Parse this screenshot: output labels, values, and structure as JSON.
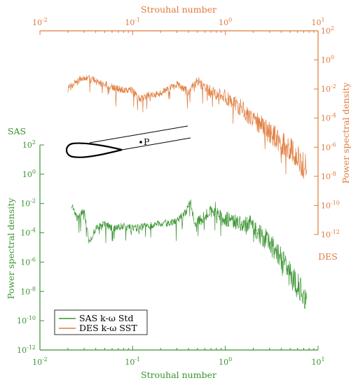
{
  "colors": {
    "sas": "#3a9430",
    "des": "#e07a3a",
    "ink": "#000000"
  },
  "chart_data": [
    {
      "type": "line",
      "name": "SAS",
      "corner_label": "SAS",
      "xlabel": "Strouhal number",
      "ylabel": "Power spectral density",
      "xscale": "log",
      "yscale": "log",
      "xlim": [
        0.01,
        10
      ],
      "ylim": [
        1e-12,
        100
      ],
      "x_tick_labels": [
        "10-2",
        "10-1",
        "100",
        "101"
      ],
      "y_tick_labels": [
        "10-12",
        "10-10",
        "10-8",
        "10-6",
        "10-4",
        "10-2",
        "100",
        "102"
      ],
      "series": [
        {
          "name": "SAS k-ω Std",
          "color": "#3a9430",
          "x": [
            0.022,
            0.025,
            0.03,
            0.034,
            0.04,
            0.05,
            0.06,
            0.08,
            0.1,
            0.15,
            0.2,
            0.3,
            0.38,
            0.42,
            0.46,
            0.55,
            0.7,
            0.8,
            0.9,
            1.1,
            1.4,
            1.8,
            2.2,
            2.8,
            3.5,
            4.5,
            5.5,
            6.5,
            7.5
          ],
          "y": [
            0.008,
            0.001,
            0.003,
            2e-05,
            0.0002,
            0.0004,
            0.0002,
            0.0003,
            0.0002,
            0.0003,
            0.0004,
            0.0006,
            0.003,
            0.02,
            0.0005,
            0.0008,
            0.003,
            0.005,
            0.001,
            0.0008,
            0.0006,
            0.0004,
            0.0001,
            3e-05,
            5e-06,
            5e-07,
            5e-08,
            1e-08,
            3e-09
          ]
        }
      ]
    },
    {
      "type": "line",
      "name": "DES",
      "corner_label": "DES",
      "xlabel": "Strouhal number",
      "ylabel": "Power spectral density",
      "xscale": "log",
      "yscale": "log",
      "xlim": [
        0.01,
        10
      ],
      "ylim": [
        1e-12,
        100
      ],
      "x_tick_labels": [
        "10-2",
        "10-1",
        "100",
        "101"
      ],
      "y_tick_labels": [
        "10-12",
        "10-10",
        "10-8",
        "10-6",
        "10-4",
        "10-2",
        "100",
        "102"
      ],
      "series": [
        {
          "name": "DES k-ω SST",
          "color": "#e07a3a",
          "x": [
            0.02,
            0.03,
            0.05,
            0.07,
            0.1,
            0.12,
            0.15,
            0.2,
            0.3,
            0.4,
            0.5,
            0.6,
            0.8,
            1.0,
            1.3,
            1.6,
            2.0,
            2.5,
            3.0,
            4.0,
            5.0,
            6.0,
            7.0,
            7.5
          ],
          "y": [
            0.01,
            0.07,
            0.02,
            0.01,
            0.008,
            0.002,
            0.004,
            0.005,
            0.02,
            0.006,
            0.04,
            0.01,
            0.005,
            0.003,
            0.001,
            0.0003,
            0.0001,
            3e-05,
            1e-05,
            2e-06,
            6e-07,
            2e-07,
            5e-08,
            3e-08
          ]
        }
      ]
    }
  ],
  "inset": {
    "probe_label": "P"
  }
}
